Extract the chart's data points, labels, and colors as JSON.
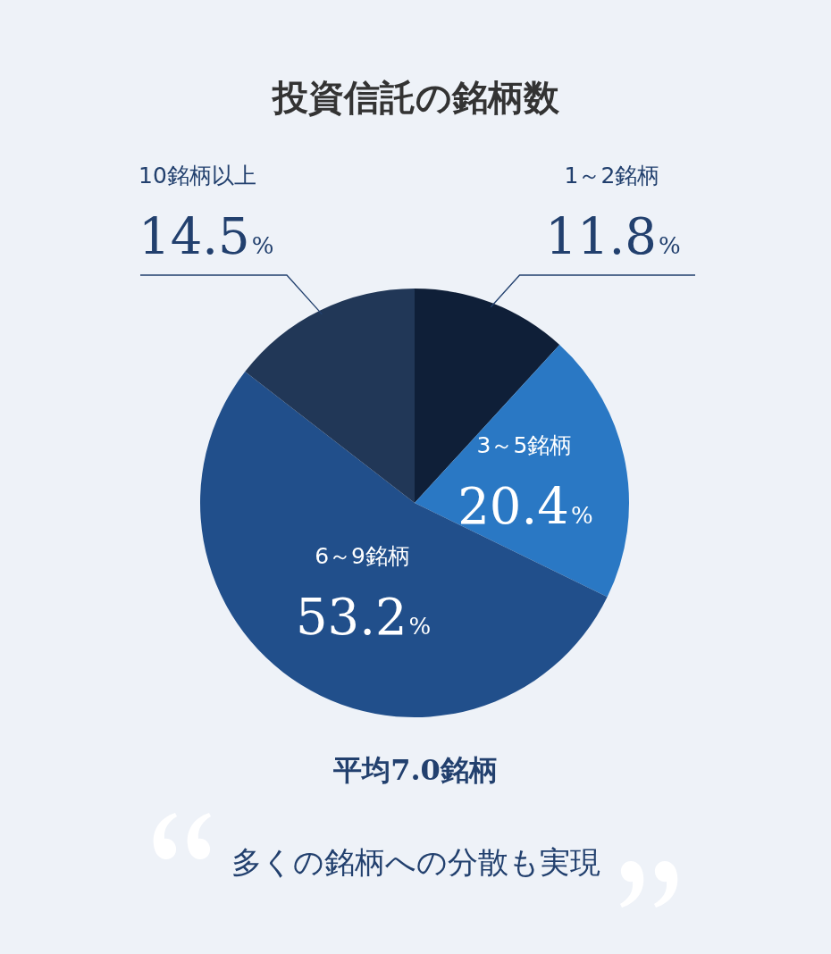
{
  "chart_data": {
    "type": "pie",
    "title": "投資信託の銘柄数",
    "categories": [
      "1～2銘柄",
      "3～5銘柄",
      "6～9銘柄",
      "10銘柄以上"
    ],
    "values": [
      11.8,
      20.4,
      53.2,
      14.5
    ],
    "colors": [
      "#0f1f38",
      "#2a78c4",
      "#214f8b",
      "#213757"
    ],
    "value_labels": [
      "11.8%",
      "20.4%",
      "53.2%",
      "14.5%"
    ],
    "annotations": [
      "平均7.0銘柄",
      "多くの銘柄への分散も実現"
    ]
  }
}
